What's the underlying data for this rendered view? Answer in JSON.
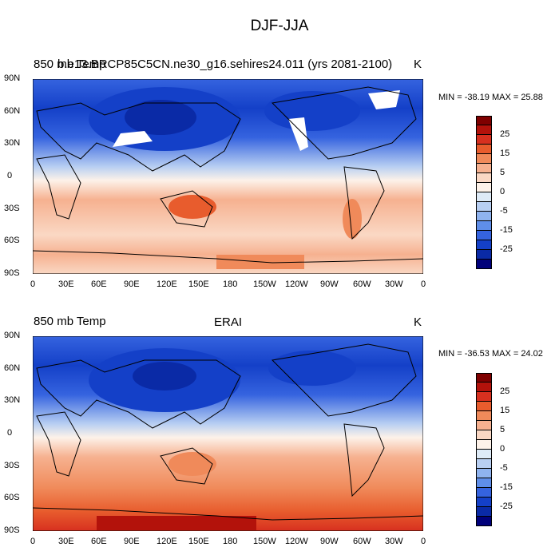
{
  "title": "DJF-JJA",
  "units": "K",
  "lat_labels": [
    "90N",
    "60N",
    "30N",
    "0",
    "30S",
    "60S",
    "90S"
  ],
  "lon_labels": [
    "0",
    "30E",
    "60E",
    "90E",
    "120E",
    "150E",
    "180",
    "150W",
    "120W",
    "90W",
    "60W",
    "30W",
    "0"
  ],
  "colorbar": {
    "colors": [
      "#7f0000",
      "#b3120b",
      "#d7301f",
      "#e85c2d",
      "#f08a5a",
      "#f6b190",
      "#fad8c4",
      "#fdf2e9",
      "#deebf7",
      "#b8cff2",
      "#8fb3ef",
      "#5f8ee9",
      "#3563df",
      "#1440c8",
      "#0a2aa6",
      "#00007a"
    ],
    "labels": [
      "25",
      "15",
      "5",
      "0",
      "-5",
      "-15",
      "-25"
    ]
  },
  "panels": [
    {
      "left_title": "850 mb Temp",
      "center_title": "b.e13.BRCP85C5CN.ne30_g16.sehires24.011 (yrs 2081-2100)",
      "stats": "MIN = -38.19 MAX =  25.88"
    },
    {
      "left_title": "850 mb Temp",
      "center_title": "ERAI",
      "stats": "MIN = -36.53 MAX =  24.02"
    }
  ]
}
